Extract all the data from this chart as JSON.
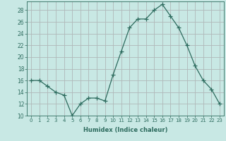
{
  "x": [
    0,
    1,
    2,
    3,
    4,
    5,
    6,
    7,
    8,
    9,
    10,
    11,
    12,
    13,
    14,
    15,
    16,
    17,
    18,
    19,
    20,
    21,
    22,
    23
  ],
  "y": [
    16,
    16,
    15,
    14,
    13.5,
    10,
    12,
    13,
    13,
    12.5,
    17,
    21,
    25,
    26.5,
    26.5,
    28,
    29,
    27,
    25,
    22,
    18.5,
    16,
    14.5,
    12
  ],
  "xlabel": "Humidex (Indice chaleur)",
  "ylim": [
    10,
    29
  ],
  "yticks": [
    10,
    12,
    14,
    16,
    18,
    20,
    22,
    24,
    26,
    28
  ],
  "xticks": [
    0,
    1,
    2,
    3,
    4,
    5,
    6,
    7,
    8,
    9,
    10,
    11,
    12,
    13,
    14,
    15,
    16,
    17,
    18,
    19,
    20,
    21,
    22,
    23
  ],
  "line_color": "#2d6b5e",
  "marker": "+",
  "bg_color": "#c8e8e4",
  "grid_color": "#b0b8b8"
}
